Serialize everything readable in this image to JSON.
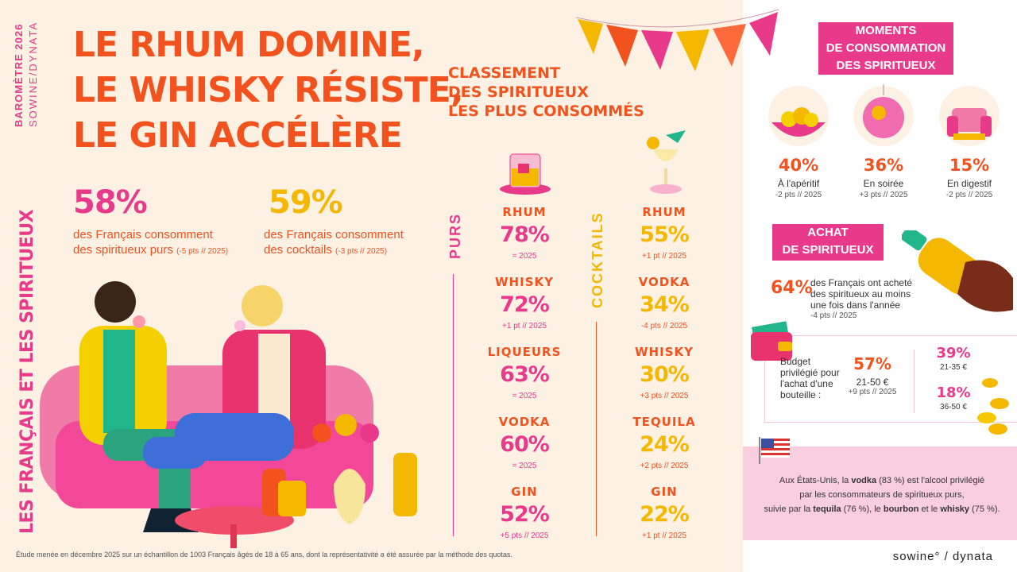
{
  "barometer": {
    "line1": "BAROMÈTRE 2026",
    "line2": "SOWINE/DYNATA"
  },
  "side_title": "LES FRANÇAIS ET LES SPIRITUEUX",
  "headline": [
    "LE RHUM DOMINE,",
    "LE WHISKY RÉSISTE,",
    "LE GIN ACCÉLÈRE"
  ],
  "stats": [
    {
      "value": "58%",
      "line1": "des Français consomment",
      "line2": "des spiritueux purs",
      "note": "(-5 pts // 2025)"
    },
    {
      "value": "59%",
      "line1": "des Français consomment",
      "line2": "des cocktails",
      "note": "(-3 pts // 2025)"
    }
  ],
  "ranking": {
    "title": [
      "CLASSEMENT",
      "DES SPIRITUEUX",
      "LES PLUS CONSOMMÉS"
    ],
    "purs_label": "PURS",
    "cocktails_label": "COCKTAILS",
    "purs": [
      {
        "name": "RHUM",
        "pct": "78%",
        "note": "= 2025"
      },
      {
        "name": "WHISKY",
        "pct": "72%",
        "note": "+1 pt // 2025"
      },
      {
        "name": "LIQUEURS",
        "pct": "63%",
        "note": "= 2025"
      },
      {
        "name": "VODKA",
        "pct": "60%",
        "note": "= 2025"
      },
      {
        "name": "GIN",
        "pct": "52%",
        "note": "+5 pts // 2025"
      }
    ],
    "cocktails": [
      {
        "name": "RHUM",
        "pct": "55%",
        "note": "+1 pt // 2025"
      },
      {
        "name": "VODKA",
        "pct": "34%",
        "note": "-4 pts // 2025"
      },
      {
        "name": "WHISKY",
        "pct": "30%",
        "note": "+3 pts // 2025"
      },
      {
        "name": "TEQUILA",
        "pct": "24%",
        "note": "+2 pts // 2025"
      },
      {
        "name": "GIN",
        "pct": "22%",
        "note": "+1 pt // 2025"
      }
    ]
  },
  "moments": {
    "title": [
      "MOMENTS",
      "DE CONSOMMATION",
      "DES SPIRITUEUX"
    ],
    "items": [
      {
        "pct": "40%",
        "label": "À l'apéritif",
        "note": "-2 pts // 2025"
      },
      {
        "pct": "36%",
        "label": "En soirée",
        "note": "+3 pts // 2025"
      },
      {
        "pct": "15%",
        "label": "En digestif",
        "note": "-2 pts // 2025"
      }
    ]
  },
  "achat": {
    "title": [
      "ACHAT",
      "DE SPIRITUEUX"
    ],
    "pct": "64%",
    "text": [
      "des Français ont acheté",
      "des spiritueux au moins",
      "une fois dans l'année"
    ],
    "note": "-4 pts // 2025"
  },
  "budget": {
    "label": [
      "Budget",
      "privilégié pour",
      "l'achat d'une",
      "bouteille :"
    ],
    "main_pct": "57%",
    "main_range": "21-50 €",
    "main_note": "+9 pts // 2025",
    "others": [
      {
        "pct": "39%",
        "range": "21-35 €"
      },
      {
        "pct": "18%",
        "range": "36-50 €"
      }
    ]
  },
  "usa": {
    "l1a": "Aux États-Unis, la ",
    "l1b": "vodka",
    "l1c": " (83 %) est l'alcool privilégié",
    "l2": "par les consommateurs de spiritueux purs,",
    "l3a": "suivie par la ",
    "l3b": "tequila",
    "l3c": " (76 %), le ",
    "l3d": "bourbon",
    "l3e": " et le ",
    "l3f": "whisky",
    "l3g": " (75 %)."
  },
  "footnote": "Étude menée en décembre 2025 sur un échantillon de 1003 Français âgés de 18 à 65 ans, dont la représentativité a été assurée par la méthode des quotas.",
  "logo": "sowine° / dynata",
  "colors": {
    "orange": "#f2531e",
    "pink": "#e8398a",
    "yellow": "#f5b800"
  }
}
